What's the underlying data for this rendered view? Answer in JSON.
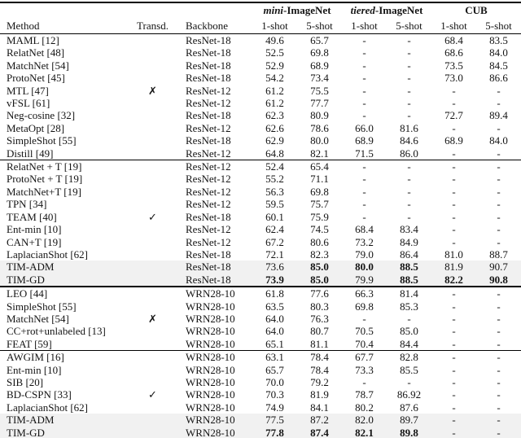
{
  "table": {
    "symbols": {
      "check": "✓",
      "cross": "✗"
    },
    "highlight_color": "#f1f1f1",
    "group_headers": [
      {
        "italic": "mini",
        "rest": "-ImageNet"
      },
      {
        "italic": "tiered",
        "rest": "-ImageNet"
      },
      {
        "italic": "",
        "rest": "CUB"
      }
    ],
    "column_headers": [
      "Method",
      "Transd.",
      "Backbone",
      "1-shot",
      "5-shot",
      "1-shot",
      "5-shot",
      "1-shot",
      "5-shot"
    ],
    "blocks": [
      {
        "transd_mark": "cross",
        "transd_row": 4,
        "rows": [
          {
            "method": "MAML [12]",
            "backbone": "ResNet-18",
            "values": [
              "49.6",
              "65.7",
              "-",
              "-",
              "68.4",
              "83.5"
            ]
          },
          {
            "method": "RelatNet [48]",
            "backbone": "ResNet-18",
            "values": [
              "52.5",
              "69.8",
              "-",
              "-",
              "68.6",
              "84.0"
            ]
          },
          {
            "method": "MatchNet [54]",
            "backbone": "ResNet-18",
            "values": [
              "52.9",
              "68.9",
              "-",
              "-",
              "73.5",
              "84.5"
            ]
          },
          {
            "method": "ProtoNet [45]",
            "backbone": "ResNet-18",
            "values": [
              "54.2",
              "73.4",
              "-",
              "-",
              "73.0",
              "86.6"
            ]
          },
          {
            "method": "MTL [47]",
            "backbone": "ResNet-12",
            "values": [
              "61.2",
              "75.5",
              "-",
              "-",
              "-",
              "-"
            ]
          },
          {
            "method": "vFSL [61]",
            "backbone": "ResNet-12",
            "values": [
              "61.2",
              "77.7",
              "-",
              "-",
              "-",
              "-"
            ]
          },
          {
            "method": "Neg-cosine [32]",
            "backbone": "ResNet-18",
            "values": [
              "62.3",
              "80.9",
              "-",
              "-",
              "72.7",
              "89.4"
            ]
          },
          {
            "method": "MetaOpt [28]",
            "backbone": "ResNet-12",
            "values": [
              "62.6",
              "78.6",
              "66.0",
              "81.6",
              "-",
              "-"
            ]
          },
          {
            "method": "SimpleShot [55]",
            "backbone": "ResNet-18",
            "values": [
              "62.9",
              "80.0",
              "68.9",
              "84.6",
              "68.9",
              "84.0"
            ]
          },
          {
            "method": "Distill [49]",
            "backbone": "ResNet-12",
            "values": [
              "64.8",
              "82.1",
              "71.5",
              "86.0",
              "-",
              "-"
            ]
          }
        ]
      },
      {
        "transd_mark": "check",
        "transd_row": 4,
        "rows": [
          {
            "method": "RelatNet + T [19]",
            "backbone": "ResNet-12",
            "values": [
              "52.4",
              "65.4",
              "-",
              "-",
              "-",
              "-"
            ]
          },
          {
            "method": "ProtoNet + T [19]",
            "backbone": "ResNet-12",
            "values": [
              "55.2",
              "71.1",
              "-",
              "-",
              "-",
              "-"
            ]
          },
          {
            "method": "MatchNet+T [19]",
            "backbone": "ResNet-12",
            "values": [
              "56.3",
              "69.8",
              "-",
              "-",
              "-",
              "-"
            ]
          },
          {
            "method": "TPN [34]",
            "backbone": "ResNet-12",
            "values": [
              "59.5",
              "75.7",
              "-",
              "-",
              "-",
              "-"
            ]
          },
          {
            "method": "TEAM [40]",
            "backbone": "ResNet-18",
            "values": [
              "60.1",
              "75.9",
              "-",
              "-",
              "-",
              "-"
            ]
          },
          {
            "method": "Ent-min [10]",
            "backbone": "ResNet-12",
            "values": [
              "62.4",
              "74.5",
              "68.4",
              "83.4",
              "-",
              "-"
            ]
          },
          {
            "method": "CAN+T [19]",
            "backbone": "ResNet-12",
            "values": [
              "67.2",
              "80.6",
              "73.2",
              "84.9",
              "-",
              "-"
            ]
          },
          {
            "method": "LaplacianShot [62]",
            "backbone": "ResNet-18",
            "values": [
              "72.1",
              "82.3",
              "79.0",
              "86.4",
              "81.0",
              "88.7"
            ]
          },
          {
            "method": "TIM-ADM",
            "backbone": "ResNet-18",
            "highlight": true,
            "values": [
              "73.6",
              "85.0",
              "80.0",
              "88.5",
              "81.9",
              "90.7"
            ],
            "bold": [
              false,
              true,
              true,
              true,
              false,
              false
            ]
          },
          {
            "method": "TIM-GD",
            "backbone": "ResNet-18",
            "highlight": true,
            "values": [
              "73.9",
              "85.0",
              "79.9",
              "88.5",
              "82.2",
              "90.8"
            ],
            "bold": [
              true,
              true,
              false,
              true,
              true,
              true
            ]
          }
        ]
      },
      {
        "transd_mark": "cross",
        "transd_row": 2,
        "rows": [
          {
            "method": "LEO [44]",
            "backbone": "WRN28-10",
            "values": [
              "61.8",
              "77.6",
              "66.3",
              "81.4",
              "-",
              "-"
            ]
          },
          {
            "method": "SimpleShot [55]",
            "backbone": "WRN28-10",
            "values": [
              "63.5",
              "80.3",
              "69.8",
              "85.3",
              "-",
              "-"
            ]
          },
          {
            "method": "MatchNet [54]",
            "backbone": "WRN28-10",
            "values": [
              "64.0",
              "76.3",
              "-",
              "-",
              "-",
              "-"
            ]
          },
          {
            "method": "CC+rot+unlabeled [13]",
            "backbone": "WRN28-10",
            "values": [
              "64.0",
              "80.7",
              "70.5",
              "85.0",
              "-",
              "-"
            ]
          },
          {
            "method": "FEAT [59]",
            "backbone": "WRN28-10",
            "values": [
              "65.1",
              "81.1",
              "70.4",
              "84.4",
              "-",
              "-"
            ]
          }
        ]
      },
      {
        "transd_mark": "check",
        "transd_row": 3,
        "rows": [
          {
            "method": "AWGIM [16]",
            "backbone": "WRN28-10",
            "values": [
              "63.1",
              "78.4",
              "67.7",
              "82.8",
              "-",
              "-"
            ]
          },
          {
            "method": "Ent-min [10]",
            "backbone": "WRN28-10",
            "values": [
              "65.7",
              "78.4",
              "73.3",
              "85.5",
              "-",
              "-"
            ]
          },
          {
            "method": "SIB [20]",
            "backbone": "WRN28-10",
            "values": [
              "70.0",
              "79.2",
              "-",
              "-",
              "-",
              "-"
            ]
          },
          {
            "method": "BD-CSPN [33]",
            "backbone": "WRN28-10",
            "values": [
              "70.3",
              "81.9",
              "78.7",
              "86.92",
              "-",
              "-"
            ]
          },
          {
            "method": "LaplacianShot [62]",
            "backbone": "WRN28-10",
            "values": [
              "74.9",
              "84.1",
              "80.2",
              "87.6",
              "-",
              "-"
            ]
          },
          {
            "method": "TIM-ADM",
            "backbone": "WRN28-10",
            "highlight": true,
            "values": [
              "77.5",
              "87.2",
              "82.0",
              "89.7",
              "-",
              "-"
            ]
          },
          {
            "method": "TIM-GD",
            "backbone": "WRN28-10",
            "highlight": true,
            "values": [
              "77.8",
              "87.4",
              "82.1",
              "89.8",
              "-",
              "-"
            ],
            "bold": [
              true,
              true,
              true,
              true,
              false,
              false
            ]
          }
        ]
      }
    ]
  }
}
